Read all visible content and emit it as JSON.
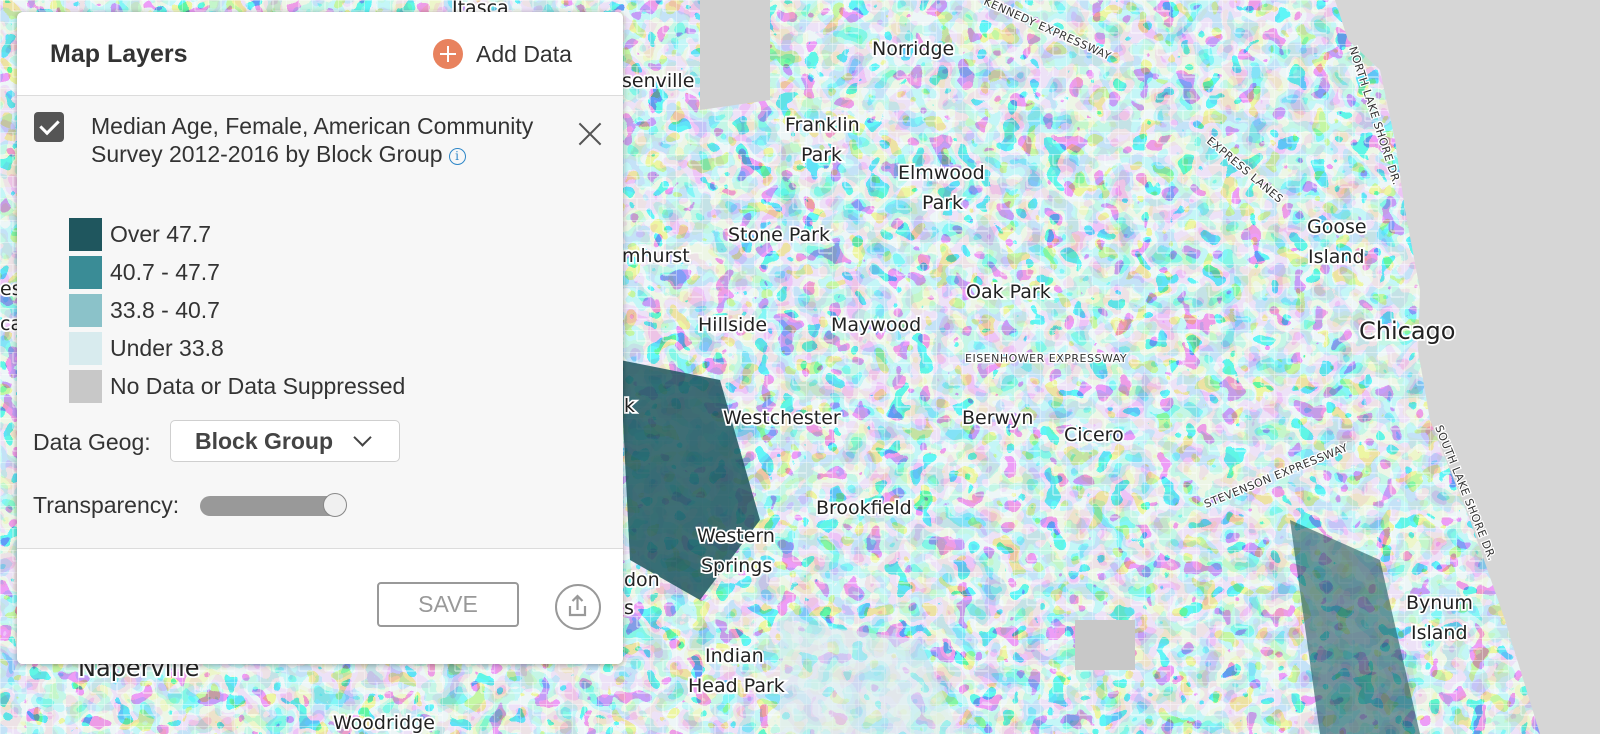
{
  "map": {
    "places": [
      {
        "label": "Itasca"
      },
      {
        "label": "Norridge"
      },
      {
        "label": "senville"
      },
      {
        "label": "Franklin"
      },
      {
        "label": "Park"
      },
      {
        "label": "Elmwood"
      },
      {
        "label": "Park"
      },
      {
        "label": "Stone Park"
      },
      {
        "label": "mhurst"
      },
      {
        "label": "Goose"
      },
      {
        "label": "Island"
      },
      {
        "label": "Oak Park"
      },
      {
        "label": "Hillside"
      },
      {
        "label": "Maywood"
      },
      {
        "label": "Chicago"
      },
      {
        "label": "Westchester"
      },
      {
        "label": "Berwyn"
      },
      {
        "label": "Cicero"
      },
      {
        "label": "k"
      },
      {
        "label": "Brookfield"
      },
      {
        "label": "Western"
      },
      {
        "label": "Springs"
      },
      {
        "label": "don"
      },
      {
        "label": "s"
      },
      {
        "label": "Bynum"
      },
      {
        "label": "Island"
      },
      {
        "label": "Indian"
      },
      {
        "label": "Head Park"
      },
      {
        "label": "Naperville"
      },
      {
        "label": "Woodridge"
      },
      {
        "label": "es"
      },
      {
        "label": "ca"
      }
    ],
    "roads": [
      {
        "label": "KENNEDY EXPRESSWAY"
      },
      {
        "label": "EXPRESS LANES"
      },
      {
        "label": "NORTH LAKE SHORE DR."
      },
      {
        "label": "EISENHOWER EXPRESSWAY"
      },
      {
        "label": "STEVENSON EXPRESSWAY"
      },
      {
        "label": "SOUTH LAKE SHORE DR."
      }
    ]
  },
  "panel": {
    "title": "Map Layers",
    "add_data_label": "Add Data",
    "layer": {
      "checked": true,
      "title": "Median Age, Female, American Community Survey 2012-2016 by Block Group",
      "info_glyph": "i"
    },
    "legend": [
      {
        "label": "Over 47.7",
        "color": "#1f565e"
      },
      {
        "label": "40.7 - 47.7",
        "color": "#3a8c96"
      },
      {
        "label": "33.8 - 40.7",
        "color": "#8bc2c9"
      },
      {
        "label": "Under 33.8",
        "color": "#d8ebee"
      },
      {
        "label": "No Data or Data Suppressed",
        "color": "#c8c8c8"
      }
    ],
    "data_geog": {
      "label": "Data Geog:",
      "value": "Block Group"
    },
    "transparency": {
      "label": "Transparency:",
      "value_percent": 100
    },
    "save_label": "SAVE"
  }
}
